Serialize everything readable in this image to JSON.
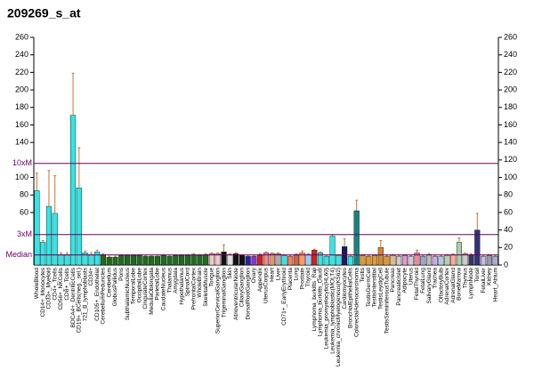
{
  "chart_data": {
    "type": "bar",
    "title": "209269_s_at",
    "categories": [
      "WholeBlood",
      "CD14+_Monocytes",
      "CD33+_Myeloid",
      "CD4+_Tcells",
      "CD56+_NKCells",
      "CD8+_Tcells",
      "BDCA4+_DentriticCells",
      "CD19+_BCells(neg._sel.)",
      "721_B_lymphoblasts",
      "CD34+",
      "CD105+_Endothelial",
      "CerebellumPeduncles",
      "Cerebellum",
      "GlobusPallidus",
      "Pons",
      "SubthalamicNucleus",
      "TemporalLobe",
      "OccipitalLobe",
      "CingulateCortex",
      "MedullaOblongata",
      "ParietalLobe",
      "CaudateNucleus",
      "Thalamus",
      "Amygdala",
      "Hypothalamus",
      "SpinalCord",
      "PrefrontalCortex",
      "WholeBrain",
      "SkeletalMuscle",
      "Tongue",
      "SuperiorCervicalGanglion",
      "TrigeminalGanglion",
      "Skin",
      "AtrioventricularNode",
      "CiliaryGanglion",
      "DorsalRootGanglion",
      "Ovary",
      "Appendix",
      "UterusCorpus",
      "Heart",
      "Liver",
      "CD71+_EarlyErythroid",
      "Placenta",
      "Lung",
      "Prostate",
      "Thyroid",
      "Lymphoma_burkitts_Raji",
      "Lymphoma_burkitts_Daudi",
      "Leukemia_promyelocytic(HL60)",
      "Leukemia_lymphoblastic(MOLT4)",
      "Leukemia_chronicMyelogenous(K562)",
      "Cardiomyocytes",
      "BronchialEpithelialCells",
      "ColorectalAdenocarcinoma",
      "Testis",
      "TestisGermCell",
      "TestisInterstitial",
      "TestisLeydigCell",
      "TestisSeminiferousTubule",
      "Pancreas",
      "PancreaticIslet",
      "Adipocyte",
      "Uterus",
      "FetalThyroid",
      "FetalLung",
      "SalivaryGland",
      "Trachea",
      "OlfactoryBulb",
      "AdrenalCortex",
      "AdrenalGland",
      "BoneMarrow",
      "Thymus",
      "LymphNode",
      "Tonsil",
      "FetalLiver",
      "Kidney",
      "Heart_Atrium"
    ],
    "values": [
      85,
      26,
      67,
      59,
      12,
      12,
      171,
      88,
      14,
      12,
      15,
      12,
      9,
      9,
      11,
      11,
      11,
      11,
      10,
      10,
      10,
      11,
      10,
      11,
      11,
      11,
      12,
      11,
      12,
      13,
      13,
      15,
      12,
      13,
      11,
      10,
      10,
      12,
      14,
      13,
      13,
      11,
      10,
      12,
      14,
      12,
      17,
      14,
      10,
      33,
      11,
      21,
      10,
      62,
      11,
      10,
      11,
      20,
      10,
      11,
      10,
      11,
      10,
      14,
      10,
      12,
      10,
      10,
      11,
      12,
      26,
      13,
      12,
      40,
      10,
      11,
      10
    ],
    "errors": [
      20,
      2,
      41,
      43,
      2,
      2,
      48,
      46,
      2,
      2,
      2,
      1,
      1,
      1,
      1,
      1,
      1,
      1,
      1,
      1,
      1,
      1,
      1,
      1,
      1,
      1,
      1,
      1,
      1,
      1,
      1,
      8,
      1,
      1,
      1,
      1,
      1,
      1,
      1,
      1,
      1,
      1,
      1,
      1,
      2,
      1,
      1,
      1,
      1,
      2,
      1,
      9,
      1,
      12,
      1,
      1,
      1,
      8,
      1,
      1,
      1,
      1,
      1,
      3,
      1,
      1,
      1,
      1,
      1,
      1,
      5,
      1,
      1,
      19,
      1,
      1,
      1
    ],
    "colors": [
      "#33e5e5",
      "#33e5e5",
      "#33e5e5",
      "#33e5e5",
      "#33e5e5",
      "#33e5e5",
      "#33e5e5",
      "#33e5e5",
      "#33e5e5",
      "#33e5e5",
      "#33e5e5",
      "#1f6b1f",
      "#1f6b1f",
      "#1f6b1f",
      "#1f6b1f",
      "#1f6b1f",
      "#1f6b1f",
      "#1f6b1f",
      "#1f6b1f",
      "#1f6b1f",
      "#1f6b1f",
      "#1f6b1f",
      "#1f6b1f",
      "#1f6b1f",
      "#1f6b1f",
      "#1f6b1f",
      "#1f6b1f",
      "#1f6b1f",
      "#1f6b1f",
      "#f0c8c8",
      "#f0c8c8",
      "#111111",
      "#e0e0e0",
      "#111111",
      "#111111",
      "#2222aa",
      "#8833cc",
      "#cc2222",
      "#ee8888",
      "#dd9977",
      "#aaaaaa",
      "#33e5e5",
      "#f08060",
      "#cc6644",
      "#ff9966",
      "#99ccff",
      "#cc2222",
      "#33e5e5",
      "#33e5e5",
      "#33e5e5",
      "#33e5e5",
      "#1a1a66",
      "#33e5e5",
      "#1a8080",
      "#dd9933",
      "#dd9933",
      "#dd9933",
      "#cc8833",
      "#dd9933",
      "#ddbb88",
      "#cccccc",
      "#dd99cc",
      "#cccccc",
      "#ee8899",
      "#99aacc",
      "#bbbbbb",
      "#ccaaee",
      "#aaccdd",
      "#bbccaa",
      "#ffaa99",
      "#aaccaa",
      "#cccccc",
      "#333366",
      "#333377",
      "#ccbbdd",
      "#9999aa",
      "#aaaacc"
    ],
    "ylim": [
      0,
      260
    ],
    "yticks": [
      60,
      80,
      100,
      140,
      160,
      180,
      200,
      220,
      240,
      260
    ],
    "y2lim": [
      0,
      260
    ],
    "y2ticks": [
      0,
      20,
      40,
      60,
      80,
      100,
      120,
      140,
      160,
      180,
      200,
      220,
      240,
      260
    ],
    "reference_lines": [
      {
        "label": "10xM",
        "value": 116
      },
      {
        "label": "3xM",
        "value": 34.8
      },
      {
        "label": "Median",
        "value": 11.6
      }
    ],
    "reference_color": "#660066",
    "error_color": "#c87533"
  }
}
